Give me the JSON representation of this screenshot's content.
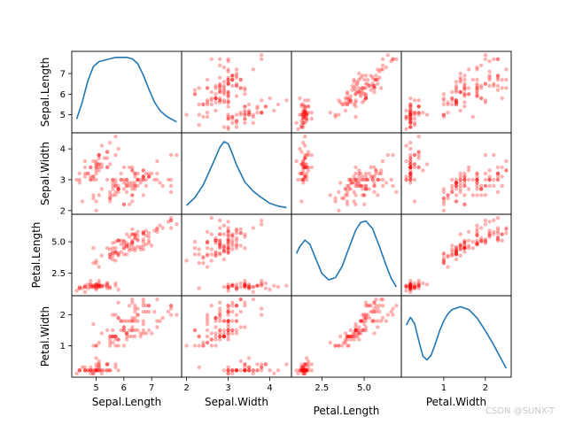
{
  "watermark": "CSDN @SUNX-T",
  "chart_data": {
    "type": "scatter",
    "variables": [
      "Sepal.Length",
      "Sepal.Width",
      "Petal.Length",
      "Petal.Width"
    ],
    "diagonal": "kde",
    "point_color": "#ff0000",
    "kde_color": "#1f77b4",
    "ranges": [
      [
        4.3,
        7.9
      ],
      [
        2.0,
        4.4
      ],
      [
        1.0,
        6.9
      ],
      [
        0.1,
        2.5
      ]
    ],
    "ticks": [
      [
        {
          "v": 5,
          "label": "5"
        },
        {
          "v": 6,
          "label": "6"
        },
        {
          "v": 7,
          "label": "7"
        }
      ],
      [
        {
          "v": 2,
          "label": "2"
        },
        {
          "v": 3,
          "label": "3"
        },
        {
          "v": 4,
          "label": "4"
        }
      ],
      [
        {
          "v": 2.5,
          "label": "2.5"
        },
        {
          "v": 5.0,
          "label": "5.0"
        }
      ],
      [
        {
          "v": 1,
          "label": "1"
        },
        {
          "v": 2,
          "label": "2"
        }
      ]
    ],
    "kde_curves": [
      {
        "x": [
          4.3,
          4.5,
          4.7,
          4.9,
          5.1,
          5.3,
          5.5,
          5.7,
          5.9,
          6.1,
          6.3,
          6.5,
          6.7,
          6.9,
          7.1,
          7.3,
          7.5,
          7.7,
          7.9
        ],
        "y": [
          0.12,
          0.36,
          0.66,
          0.86,
          0.93,
          0.95,
          0.97,
          0.99,
          0.99,
          0.99,
          0.97,
          0.9,
          0.74,
          0.54,
          0.36,
          0.24,
          0.17,
          0.12,
          0.08
        ]
      },
      {
        "x": [
          2.0,
          2.2,
          2.4,
          2.6,
          2.8,
          2.9,
          3.0,
          3.1,
          3.2,
          3.4,
          3.6,
          3.8,
          4.0,
          4.2,
          4.4
        ],
        "y": [
          0.05,
          0.16,
          0.34,
          0.6,
          0.87,
          0.95,
          0.92,
          0.78,
          0.62,
          0.38,
          0.25,
          0.16,
          0.08,
          0.04,
          0.02
        ]
      },
      {
        "x": [
          1.0,
          1.2,
          1.5,
          1.8,
          2.1,
          2.5,
          2.9,
          3.3,
          3.7,
          4.1,
          4.5,
          4.8,
          5.1,
          5.5,
          5.9,
          6.3,
          6.6,
          6.9
        ],
        "y": [
          0.52,
          0.62,
          0.71,
          0.65,
          0.47,
          0.24,
          0.15,
          0.18,
          0.34,
          0.6,
          0.85,
          0.96,
          0.98,
          0.87,
          0.62,
          0.35,
          0.17,
          0.05
        ]
      },
      {
        "x": [
          0.1,
          0.2,
          0.3,
          0.4,
          0.5,
          0.6,
          0.7,
          0.8,
          0.9,
          1.0,
          1.1,
          1.2,
          1.4,
          1.6,
          1.8,
          2.0,
          2.2,
          2.4,
          2.5
        ],
        "y": [
          0.66,
          0.77,
          0.68,
          0.44,
          0.22,
          0.17,
          0.24,
          0.4,
          0.58,
          0.72,
          0.82,
          0.88,
          0.92,
          0.88,
          0.76,
          0.58,
          0.38,
          0.16,
          0.05
        ]
      }
    ],
    "points": [
      [
        5.1,
        3.5,
        1.4,
        0.2
      ],
      [
        4.9,
        3.0,
        1.4,
        0.2
      ],
      [
        4.7,
        3.2,
        1.3,
        0.2
      ],
      [
        4.6,
        3.1,
        1.5,
        0.2
      ],
      [
        5.0,
        3.6,
        1.4,
        0.2
      ],
      [
        5.4,
        3.9,
        1.7,
        0.4
      ],
      [
        4.6,
        3.4,
        1.4,
        0.3
      ],
      [
        5.0,
        3.4,
        1.5,
        0.2
      ],
      [
        4.4,
        2.9,
        1.4,
        0.2
      ],
      [
        4.9,
        3.1,
        1.5,
        0.1
      ],
      [
        5.4,
        3.7,
        1.5,
        0.2
      ],
      [
        4.8,
        3.4,
        1.6,
        0.2
      ],
      [
        4.8,
        3.0,
        1.4,
        0.1
      ],
      [
        4.3,
        3.0,
        1.1,
        0.1
      ],
      [
        5.8,
        4.0,
        1.2,
        0.2
      ],
      [
        5.7,
        4.4,
        1.5,
        0.4
      ],
      [
        5.4,
        3.9,
        1.3,
        0.4
      ],
      [
        5.1,
        3.5,
        1.4,
        0.3
      ],
      [
        5.7,
        3.8,
        1.7,
        0.3
      ],
      [
        5.1,
        3.8,
        1.5,
        0.3
      ],
      [
        5.4,
        3.4,
        1.7,
        0.2
      ],
      [
        5.1,
        3.7,
        1.5,
        0.4
      ],
      [
        4.6,
        3.6,
        1.0,
        0.2
      ],
      [
        5.1,
        3.3,
        1.7,
        0.5
      ],
      [
        4.8,
        3.4,
        1.9,
        0.2
      ],
      [
        5.0,
        3.0,
        1.6,
        0.2
      ],
      [
        5.0,
        3.4,
        1.6,
        0.4
      ],
      [
        5.2,
        3.5,
        1.5,
        0.2
      ],
      [
        5.2,
        3.4,
        1.4,
        0.2
      ],
      [
        4.7,
        3.2,
        1.6,
        0.2
      ],
      [
        4.8,
        3.1,
        1.6,
        0.2
      ],
      [
        5.4,
        3.4,
        1.5,
        0.4
      ],
      [
        5.2,
        4.1,
        1.5,
        0.1
      ],
      [
        5.5,
        4.2,
        1.4,
        0.2
      ],
      [
        4.9,
        3.1,
        1.5,
        0.2
      ],
      [
        5.0,
        3.2,
        1.2,
        0.2
      ],
      [
        5.5,
        3.5,
        1.3,
        0.2
      ],
      [
        4.9,
        3.6,
        1.4,
        0.1
      ],
      [
        4.4,
        3.0,
        1.3,
        0.2
      ],
      [
        5.1,
        3.4,
        1.5,
        0.2
      ],
      [
        5.0,
        3.5,
        1.3,
        0.3
      ],
      [
        4.5,
        2.3,
        1.3,
        0.3
      ],
      [
        4.4,
        3.2,
        1.3,
        0.2
      ],
      [
        5.0,
        3.5,
        1.6,
        0.6
      ],
      [
        5.1,
        3.8,
        1.9,
        0.4
      ],
      [
        4.8,
        3.0,
        1.4,
        0.3
      ],
      [
        5.1,
        3.8,
        1.6,
        0.2
      ],
      [
        4.6,
        3.2,
        1.4,
        0.2
      ],
      [
        5.3,
        3.7,
        1.5,
        0.2
      ],
      [
        5.0,
        3.3,
        1.4,
        0.2
      ],
      [
        7.0,
        3.2,
        4.7,
        1.4
      ],
      [
        6.4,
        3.2,
        4.5,
        1.5
      ],
      [
        6.9,
        3.1,
        4.9,
        1.5
      ],
      [
        5.5,
        2.3,
        4.0,
        1.3
      ],
      [
        6.5,
        2.8,
        4.6,
        1.5
      ],
      [
        5.7,
        2.8,
        4.5,
        1.3
      ],
      [
        6.3,
        3.3,
        4.7,
        1.6
      ],
      [
        4.9,
        2.4,
        3.3,
        1.0
      ],
      [
        6.6,
        2.9,
        4.6,
        1.3
      ],
      [
        5.2,
        2.7,
        3.9,
        1.4
      ],
      [
        5.0,
        2.0,
        3.5,
        1.0
      ],
      [
        5.9,
        3.0,
        4.2,
        1.5
      ],
      [
        6.0,
        2.2,
        4.0,
        1.0
      ],
      [
        6.1,
        2.9,
        4.7,
        1.4
      ],
      [
        5.6,
        2.9,
        3.6,
        1.3
      ],
      [
        6.7,
        3.1,
        4.4,
        1.4
      ],
      [
        5.6,
        3.0,
        4.5,
        1.5
      ],
      [
        5.8,
        2.7,
        4.1,
        1.0
      ],
      [
        6.2,
        2.2,
        4.5,
        1.5
      ],
      [
        5.6,
        2.5,
        3.9,
        1.1
      ],
      [
        5.9,
        3.2,
        4.8,
        1.8
      ],
      [
        6.1,
        2.8,
        4.0,
        1.3
      ],
      [
        6.3,
        2.5,
        4.9,
        1.5
      ],
      [
        6.1,
        2.8,
        4.7,
        1.2
      ],
      [
        6.4,
        2.9,
        4.3,
        1.3
      ],
      [
        6.6,
        3.0,
        4.4,
        1.4
      ],
      [
        6.8,
        2.8,
        4.8,
        1.4
      ],
      [
        6.7,
        3.0,
        5.0,
        1.7
      ],
      [
        6.0,
        2.9,
        4.5,
        1.5
      ],
      [
        5.7,
        2.6,
        3.5,
        1.0
      ],
      [
        5.5,
        2.4,
        3.8,
        1.1
      ],
      [
        5.5,
        2.4,
        3.7,
        1.0
      ],
      [
        5.8,
        2.7,
        3.9,
        1.2
      ],
      [
        6.0,
        2.7,
        5.1,
        1.6
      ],
      [
        5.4,
        3.0,
        4.5,
        1.5
      ],
      [
        6.0,
        3.4,
        4.5,
        1.6
      ],
      [
        6.7,
        3.1,
        4.7,
        1.5
      ],
      [
        6.3,
        2.3,
        4.4,
        1.3
      ],
      [
        5.6,
        3.0,
        4.1,
        1.3
      ],
      [
        5.5,
        2.5,
        4.0,
        1.3
      ],
      [
        5.5,
        2.6,
        4.4,
        1.2
      ],
      [
        6.1,
        3.0,
        4.6,
        1.4
      ],
      [
        5.8,
        2.6,
        4.0,
        1.2
      ],
      [
        5.0,
        2.3,
        3.3,
        1.0
      ],
      [
        5.6,
        2.7,
        4.2,
        1.3
      ],
      [
        5.7,
        3.0,
        4.2,
        1.2
      ],
      [
        5.7,
        2.9,
        4.2,
        1.3
      ],
      [
        6.2,
        2.9,
        4.3,
        1.3
      ],
      [
        5.1,
        2.5,
        3.0,
        1.1
      ],
      [
        5.7,
        2.8,
        4.1,
        1.3
      ],
      [
        6.3,
        3.3,
        6.0,
        2.5
      ],
      [
        5.8,
        2.7,
        5.1,
        1.9
      ],
      [
        7.1,
        3.0,
        5.9,
        2.1
      ],
      [
        6.3,
        2.9,
        5.6,
        1.8
      ],
      [
        6.5,
        3.0,
        5.8,
        2.2
      ],
      [
        7.6,
        3.0,
        6.6,
        2.1
      ],
      [
        4.9,
        2.5,
        4.5,
        1.7
      ],
      [
        7.3,
        2.9,
        6.3,
        1.8
      ],
      [
        6.7,
        2.5,
        5.8,
        1.8
      ],
      [
        7.2,
        3.6,
        6.1,
        2.5
      ],
      [
        6.5,
        3.2,
        5.1,
        2.0
      ],
      [
        6.4,
        2.7,
        5.3,
        1.9
      ],
      [
        6.8,
        3.0,
        5.5,
        2.1
      ],
      [
        5.7,
        2.5,
        5.0,
        2.0
      ],
      [
        5.8,
        2.8,
        5.1,
        2.4
      ],
      [
        6.4,
        3.2,
        5.3,
        2.3
      ],
      [
        6.5,
        3.0,
        5.5,
        1.8
      ],
      [
        7.7,
        3.8,
        6.7,
        2.2
      ],
      [
        7.7,
        2.6,
        6.9,
        2.3
      ],
      [
        6.0,
        2.2,
        5.0,
        1.5
      ],
      [
        6.9,
        3.2,
        5.7,
        2.3
      ],
      [
        5.6,
        2.8,
        4.9,
        2.0
      ],
      [
        7.7,
        2.8,
        6.7,
        2.0
      ],
      [
        6.3,
        2.7,
        4.9,
        1.8
      ],
      [
        6.7,
        3.3,
        5.7,
        2.1
      ],
      [
        7.2,
        3.2,
        6.0,
        1.8
      ],
      [
        6.2,
        2.8,
        4.8,
        1.8
      ],
      [
        6.1,
        3.0,
        4.9,
        1.8
      ],
      [
        6.4,
        2.8,
        5.6,
        2.1
      ],
      [
        7.2,
        3.0,
        5.8,
        1.6
      ],
      [
        7.4,
        2.8,
        6.1,
        1.9
      ],
      [
        7.9,
        3.8,
        6.4,
        2.0
      ],
      [
        6.4,
        2.8,
        5.6,
        2.2
      ],
      [
        6.3,
        2.8,
        5.1,
        1.5
      ],
      [
        6.1,
        2.6,
        5.6,
        1.4
      ],
      [
        7.7,
        3.0,
        6.1,
        2.3
      ],
      [
        6.3,
        3.4,
        5.6,
        2.4
      ],
      [
        6.4,
        3.1,
        5.5,
        1.8
      ],
      [
        6.0,
        3.0,
        4.8,
        1.8
      ],
      [
        6.9,
        3.1,
        5.4,
        2.1
      ],
      [
        6.7,
        3.1,
        5.6,
        2.4
      ],
      [
        6.9,
        3.1,
        5.1,
        2.3
      ],
      [
        5.8,
        2.7,
        5.1,
        1.9
      ],
      [
        6.8,
        3.2,
        5.9,
        2.3
      ],
      [
        6.7,
        3.3,
        5.7,
        2.5
      ],
      [
        6.7,
        3.0,
        5.2,
        2.3
      ],
      [
        6.3,
        2.5,
        5.0,
        1.9
      ],
      [
        6.5,
        3.0,
        5.2,
        2.0
      ],
      [
        6.2,
        3.4,
        5.4,
        2.3
      ],
      [
        5.9,
        3.0,
        5.1,
        1.8
      ]
    ]
  }
}
